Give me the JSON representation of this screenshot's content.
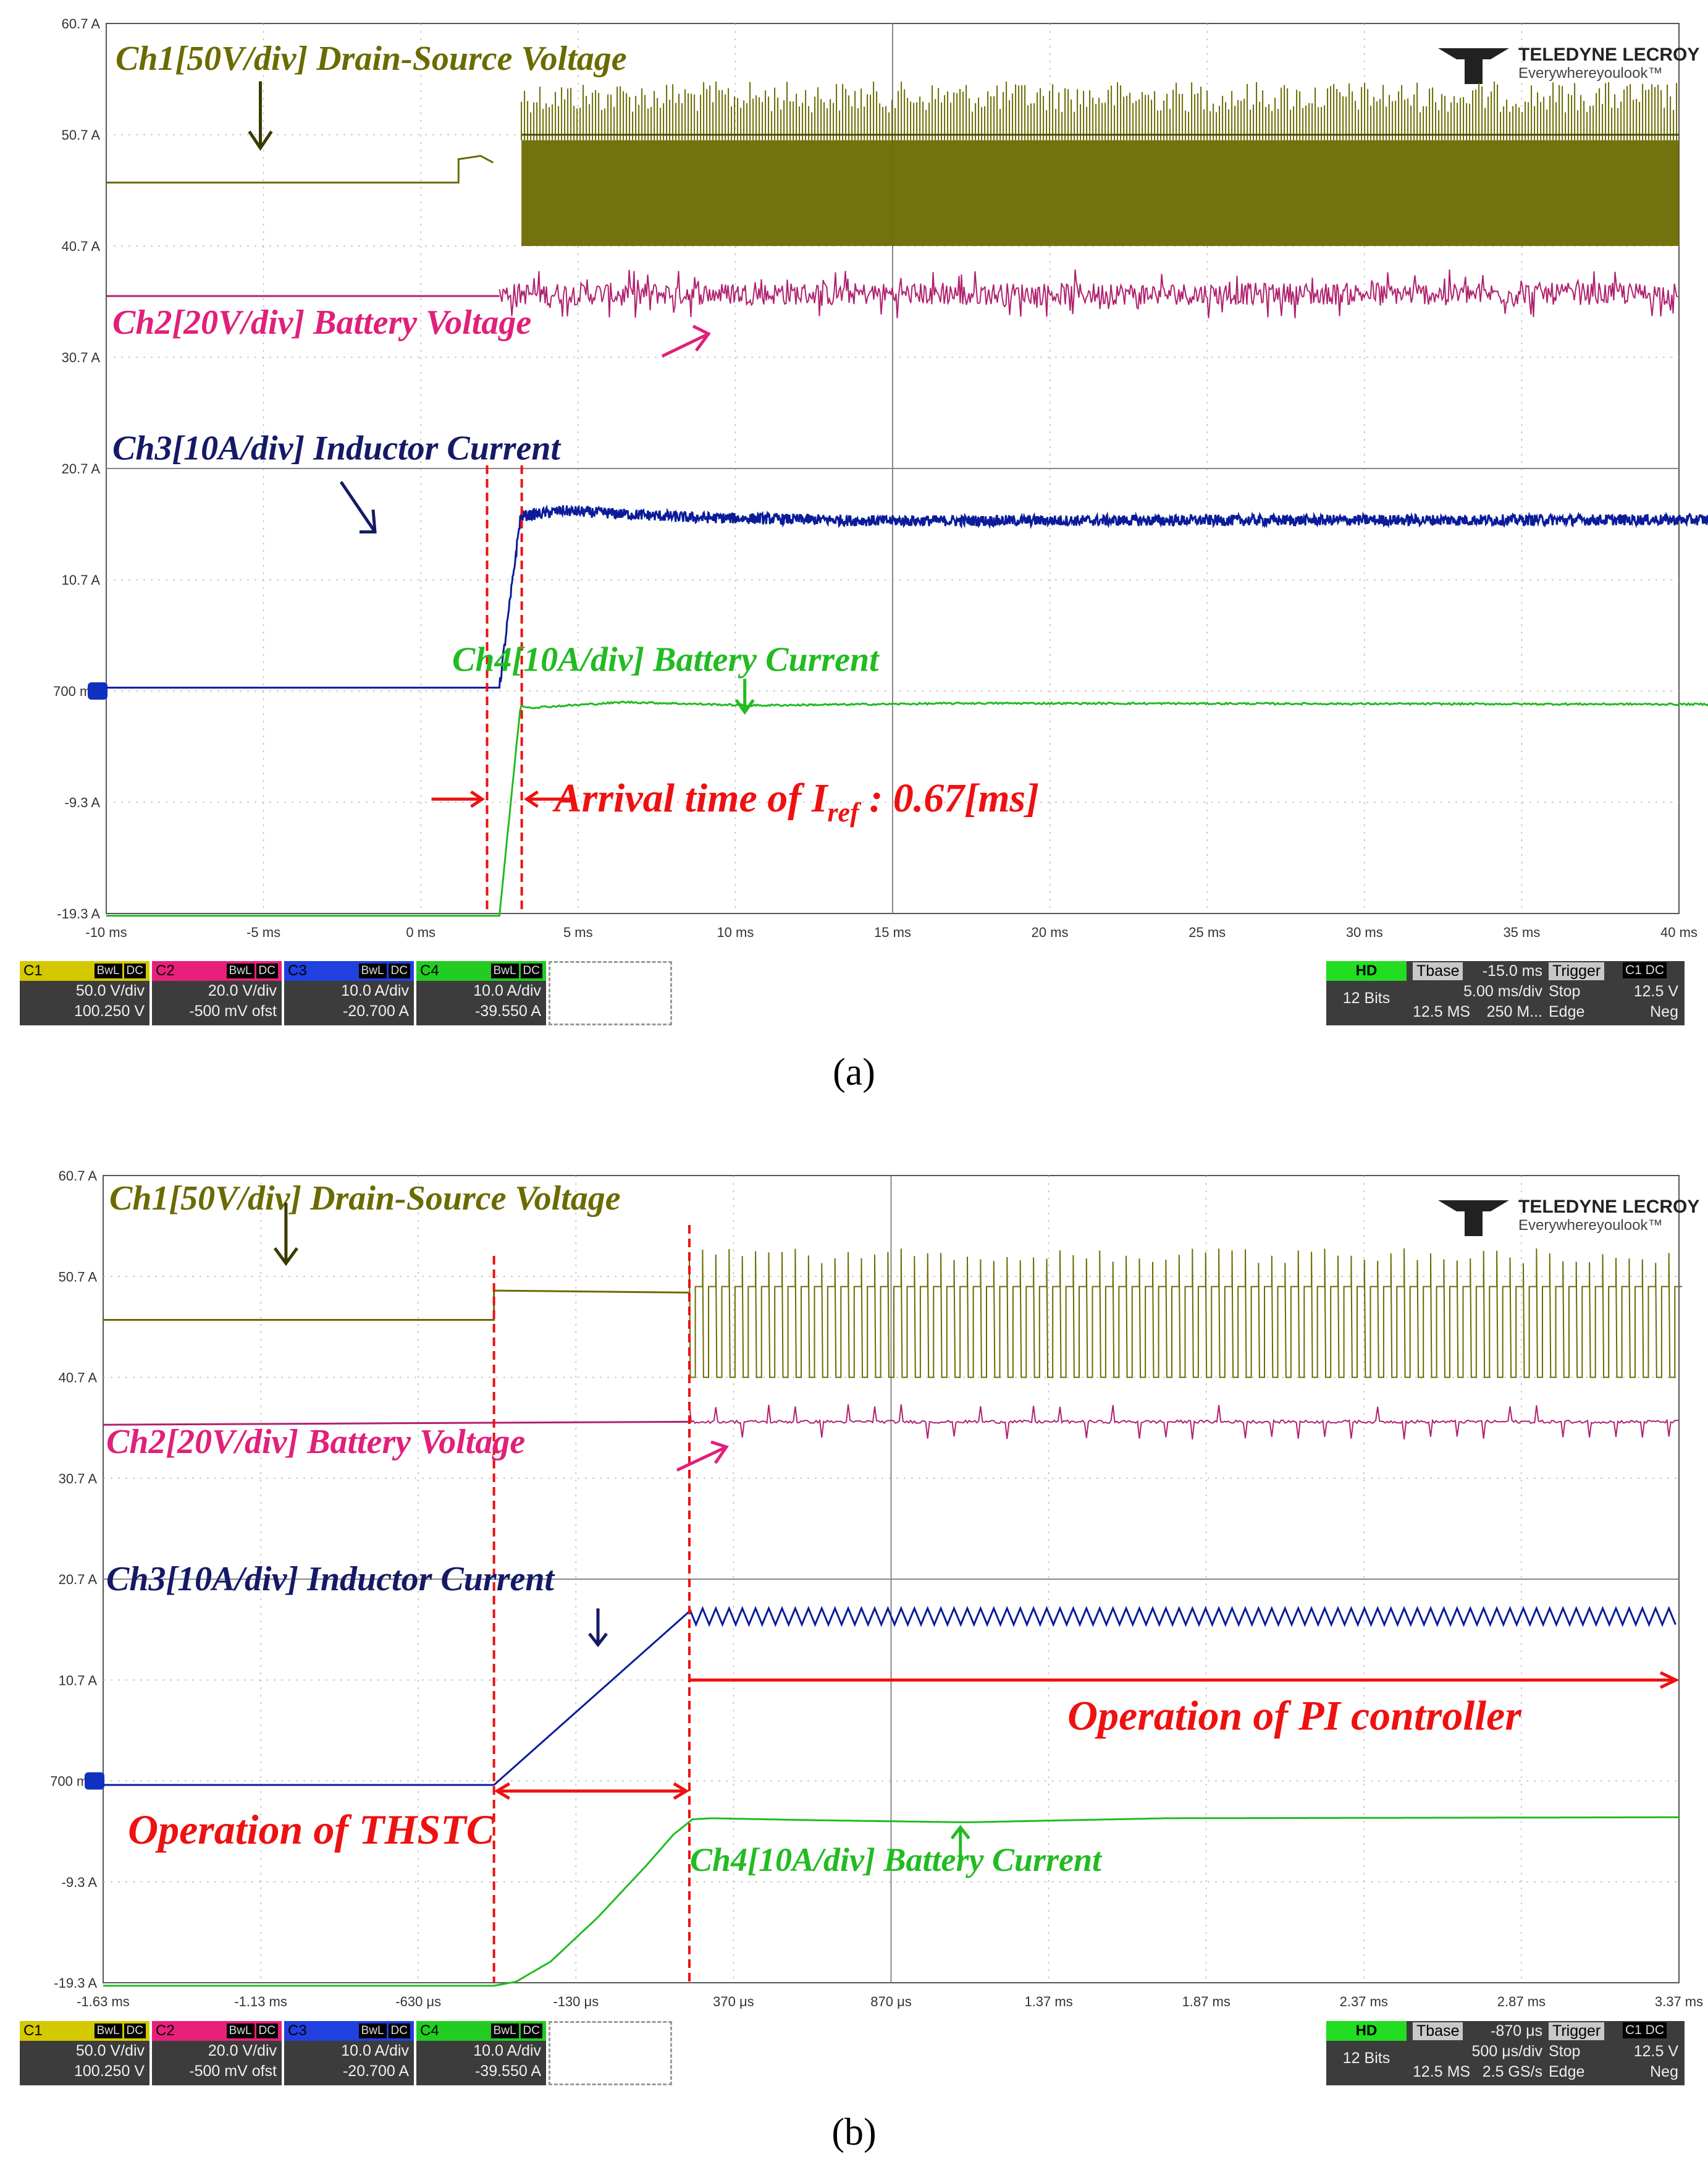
{
  "chart_data": [
    {
      "type": "line",
      "panel_id": "a",
      "caption": "(a)",
      "brand": {
        "name": "TELEDYNE LECROY",
        "tagline": "Everywhereyoulook™"
      },
      "y_tick_labels": [
        "60.7 A",
        "50.7 A",
        "40.7 A",
        "30.7 A",
        "20.7 A",
        "10.7 A",
        "700 mA",
        "-9.3 A",
        "-19.3 A"
      ],
      "x_tick_labels": [
        "-10 ms",
        "-5 ms",
        "0 ms",
        "5 ms",
        "10 ms",
        "15 ms",
        "20 ms",
        "25 ms",
        "30 ms",
        "35 ms",
        "40 ms"
      ],
      "x_range_ms": [
        -12.5,
        37.5
      ],
      "series": [
        {
          "name": "Ch1[50V/div] Drain-Source Voltage",
          "color": "#6b6b00",
          "kind": "switching",
          "pre_level": 46.4,
          "post_low": 40.7,
          "post_high": 50.2,
          "post_spike": 55.5,
          "switch_start": 0.7
        },
        {
          "name": "Ch2[20V/div] Battery Voltage",
          "color": "#b0206e",
          "kind": "noisy",
          "pre_level": 36.2,
          "post_level": 36.4,
          "noise": 1.0
        },
        {
          "name": "Ch3[10A/div] Inductor Current",
          "color": "#0a1c9a",
          "kind": "ramp",
          "points": [
            [
              -12.5,
              1.0
            ],
            [
              0,
              1.0
            ],
            [
              0.67,
              16.4
            ],
            [
              2.0,
              16.9
            ],
            [
              6.0,
              16.3
            ],
            [
              12.0,
              16.0
            ],
            [
              40,
              16.1
            ]
          ],
          "noise": 0.5
        },
        {
          "name": "Ch4[10A/div] Battery Current",
          "color": "#22bb22",
          "kind": "ramp",
          "points": [
            [
              -12.5,
              -19.5
            ],
            [
              0,
              -19.5
            ],
            [
              0.67,
              -0.6
            ],
            [
              1.0,
              -0.8
            ],
            [
              4.0,
              -0.3
            ],
            [
              8.0,
              -0.6
            ],
            [
              15,
              -0.4
            ],
            [
              40,
              -0.5
            ]
          ],
          "noise": 0.08
        }
      ],
      "markers_ms": [
        0,
        0.67
      ],
      "arrival_label": {
        "prefix": "Arrival time of I",
        "sub": "ref",
        "suffix": " : 0.67[ms]"
      },
      "channels": [
        {
          "id": "C1",
          "color": "#d4c800",
          "scale": "50.0 V/div",
          "offset": "100.250 V"
        },
        {
          "id": "C2",
          "color": "#e8207a",
          "scale": "20.0 V/div",
          "offset": "-500 mV ofst"
        },
        {
          "id": "C3",
          "color": "#2040e0",
          "scale": "10.0 A/div",
          "offset": "-20.700 A"
        },
        {
          "id": "C4",
          "color": "#22cc22",
          "scale": "10.0 A/div",
          "offset": "-39.550 A"
        }
      ],
      "channel_tags": [
        "BwL",
        "DC"
      ],
      "acquisition": {
        "hd": "HD",
        "bits": "12 Bits",
        "tbase_label": "Tbase",
        "tbase": "-15.0 ms",
        "timediv": "5.00 ms/div",
        "samples": "12.5 MS",
        "rate": "250 M...",
        "trigger_label": "Trigger",
        "trig_tags": [
          "C1",
          "DC"
        ],
        "mode": "Stop",
        "type": "Edge",
        "level": "12.5 V",
        "slope": "Neg"
      }
    },
    {
      "type": "line",
      "panel_id": "b",
      "caption": "(b)",
      "brand": {
        "name": "TELEDYNE LECROY",
        "tagline": "Everywhereyoulook™"
      },
      "y_tick_labels": [
        "60.7 A",
        "50.7 A",
        "40.7 A",
        "30.7 A",
        "20.7 A",
        "10.7 A",
        "700 mA",
        "-9.3 A",
        "-19.3 A"
      ],
      "x_tick_labels": [
        "-1.63 ms",
        "-1.13 ms",
        "-630 μs",
        "-130 μs",
        "370 μs",
        "870 μs",
        "1.37 ms",
        "1.87 ms",
        "2.37 ms",
        "2.87 ms",
        "3.37 ms"
      ],
      "x_range_us": [
        -1870,
        3130
      ],
      "series": [
        {
          "name": "Ch1[50V/div] Drain-Source Voltage",
          "color": "#6b6b00",
          "kind": "pulses",
          "pre_level": 46.4,
          "mid_level": 49.3,
          "switch_at": -630,
          "pulse_start": -10,
          "low": 40.7,
          "high": 49.7,
          "spike": 53.5,
          "period": 42
        },
        {
          "name": "Ch2[20V/div] Battery Voltage",
          "color": "#b0206e",
          "kind": "noisy",
          "pre_level": 36.0,
          "post_level": 36.3,
          "noise": 0.3
        },
        {
          "name": "Ch3[10A/div] Inductor Current",
          "color": "#0a1c9a",
          "kind": "sawtooth",
          "points": [
            [
              -1870,
              0.3
            ],
            [
              -630,
              0.3
            ],
            [
              -10,
              17.5
            ]
          ],
          "ripple_low": 16.2,
          "ripple_high": 17.8,
          "period": 42
        },
        {
          "name": "Ch4[10A/div] Battery Current",
          "color": "#22bb22",
          "kind": "curve",
          "points": [
            [
              -1870,
              -19.6
            ],
            [
              -630,
              -19.6
            ],
            [
              -560,
              -19.2
            ],
            [
              -450,
              -17.2
            ],
            [
              -300,
              -12.8
            ],
            [
              -150,
              -7.8
            ],
            [
              -60,
              -4.6
            ],
            [
              0,
              -3.1
            ],
            [
              60,
              -3.0
            ],
            [
              400,
              -3.2
            ],
            [
              870,
              -3.4
            ],
            [
              1500,
              -3.0
            ],
            [
              3130,
              -2.9
            ]
          ]
        }
      ],
      "markers_us": [
        -630,
        -10
      ],
      "annotations": {
        "pi": "Operation of PI controller",
        "thstc": "Operation of THSTC"
      },
      "channels": [
        {
          "id": "C1",
          "color": "#d4c800",
          "scale": "50.0 V/div",
          "offset": "100.250 V"
        },
        {
          "id": "C2",
          "color": "#e8207a",
          "scale": "20.0 V/div",
          "offset": "-500 mV ofst"
        },
        {
          "id": "C3",
          "color": "#2040e0",
          "scale": "10.0 A/div",
          "offset": "-20.700 A"
        },
        {
          "id": "C4",
          "color": "#22cc22",
          "scale": "10.0 A/div",
          "offset": "-39.550 A"
        }
      ],
      "channel_tags": [
        "BwL",
        "DC"
      ],
      "acquisition": {
        "hd": "HD",
        "bits": "12 Bits",
        "tbase_label": "Tbase",
        "tbase": "-870 μs",
        "timediv": "500 μs/div",
        "samples": "12.5 MS",
        "rate": "2.5 GS/s",
        "trigger_label": "Trigger",
        "trig_tags": [
          "C1",
          "DC"
        ],
        "mode": "Stop",
        "type": "Edge",
        "level": "12.5 V",
        "slope": "Neg"
      }
    }
  ]
}
